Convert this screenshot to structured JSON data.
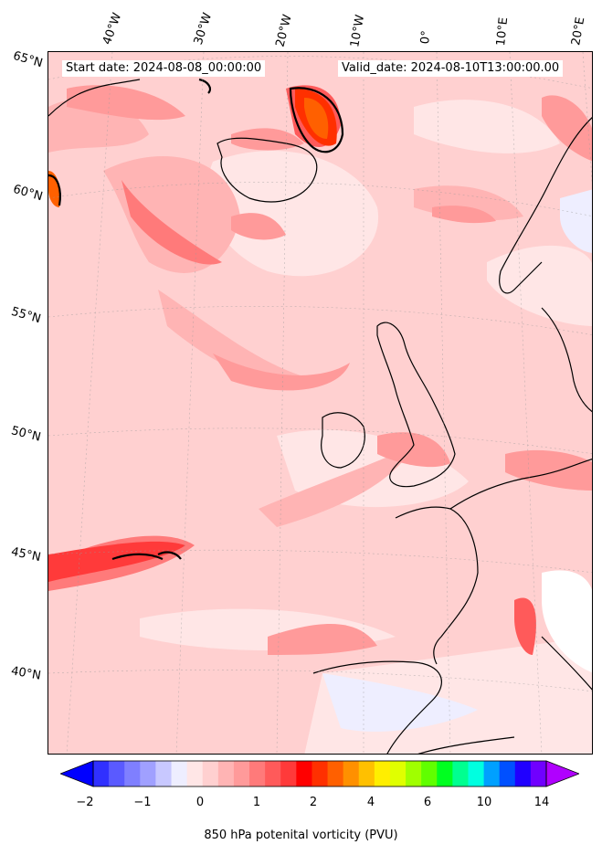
{
  "header": {
    "start_date": "Start date: 2024-08-08_00:00:00",
    "valid_date": "Valid_date: 2024-08-10T13:00:00.00"
  },
  "lon_labels": [
    "40°W",
    "30°W",
    "20°W",
    "10°W",
    "0°",
    "10°E",
    "20°E"
  ],
  "lat_labels": [
    "65°N",
    "60°N",
    "55°N",
    "50°N",
    "45°N",
    "40°N"
  ],
  "colorbar": {
    "title": "850 hPa potenital vorticity (PVU)",
    "tick_labels": [
      "−2",
      "−1",
      "0",
      "1",
      "2",
      "4",
      "6",
      "10",
      "14"
    ],
    "colors": [
      "#0000ff",
      "#3030ff",
      "#5a5aff",
      "#7f7fff",
      "#a0a0ff",
      "#c8c8ff",
      "#eeeeff",
      "#ffe6e6",
      "#ffd0d0",
      "#ffb4b4",
      "#ff9a9a",
      "#ff7a7a",
      "#ff5a5a",
      "#ff3a3a",
      "#ff0000",
      "#ff3000",
      "#ff6000",
      "#ff9000",
      "#ffc000",
      "#ffee00",
      "#e0ff00",
      "#a0ff00",
      "#60ff00",
      "#00ff20",
      "#00ff90",
      "#00ffe0",
      "#00a0ff",
      "#0050ff",
      "#2000ff",
      "#7000ff",
      "#b000ff"
    ]
  }
}
